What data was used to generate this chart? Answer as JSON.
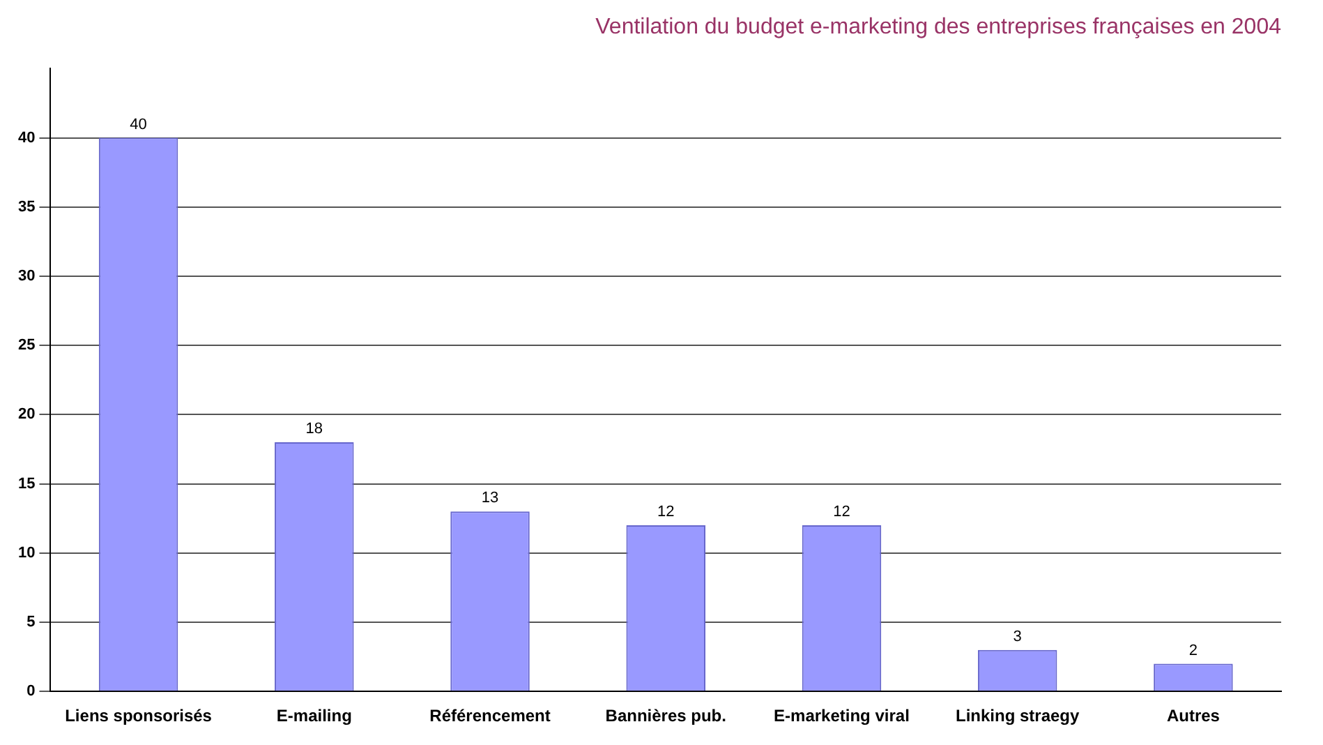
{
  "chart_data": {
    "type": "bar",
    "title": "Ventilation du budget e-marketing des entreprises françaises en 2004",
    "categories": [
      "Liens sponsorisés",
      "E-mailing",
      "Référencement",
      "Bannières pub.",
      "E-marketing viral",
      "Linking straegy",
      "Autres"
    ],
    "values": [
      40,
      18,
      13,
      12,
      12,
      3,
      2
    ],
    "color": "#9999ff",
    "ylim": [
      0,
      45
    ],
    "yticks": [
      0,
      5,
      10,
      15,
      20,
      25,
      30,
      35,
      40
    ],
    "grid": "y",
    "data_labels": true
  }
}
